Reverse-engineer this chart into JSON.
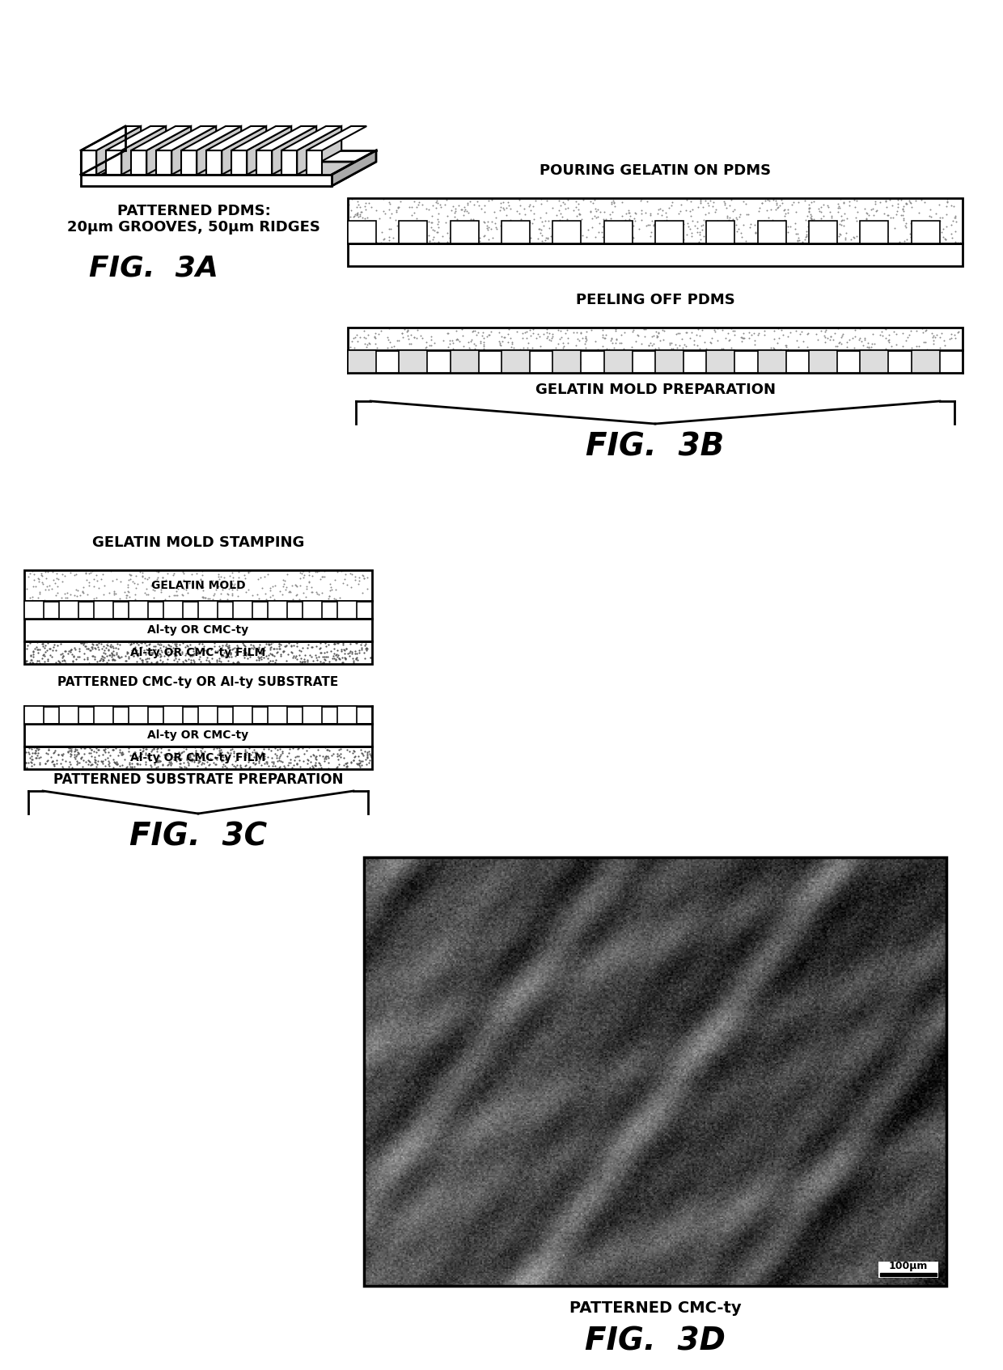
{
  "fig_width": 12.4,
  "fig_height": 16.94,
  "bg_color": "#ffffff",
  "fig3a_label": "FIG.  3A",
  "fig3b_label": "FIG.  3B",
  "fig3c_label": "FIG.  3C",
  "fig3d_label": "FIG.  3D",
  "pdms_title": "PATTERNED PDMS:",
  "pdms_subtitle": "20μm GROOVES, 50μm RIDGES",
  "pour_label": "POURING GELATIN ON PDMS",
  "peel_label": "PEELING OFF PDMS",
  "gelatin_label": "GELATIN MOLD PREPARATION",
  "stamp_label": "GELATIN MOLD STAMPING",
  "patterned_label": "PATTERNED CMC-ty OR Al-ty SUBSTRATE",
  "substrate_label": "PATTERNED SUBSTRATE PREPARATION",
  "patterned_cmc_label": "PATTERNED CMC-ty",
  "gelatin_mold_text": "GELATIN MOLD",
  "al_ty_text": "Al-ty OR CMC-ty",
  "al_ty_film_text": "Al-ty OR CMC-ty FILM",
  "black": "#000000"
}
